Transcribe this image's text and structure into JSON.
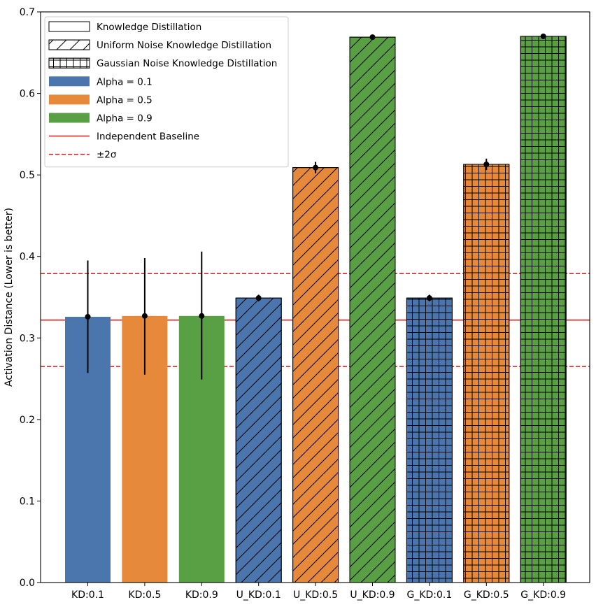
{
  "chart_data": {
    "type": "bar",
    "title": "",
    "xlabel": "",
    "ylabel": "Activation Distance (Lower is better)",
    "ylim": [
      0,
      0.7
    ],
    "yticks": [
      "0.0",
      "0.1",
      "0.2",
      "0.3",
      "0.4",
      "0.5",
      "0.6",
      "0.7"
    ],
    "ytick_values": [
      0,
      0.1,
      0.2,
      0.3,
      0.4,
      0.5,
      0.6,
      0.7
    ],
    "categories": [
      "KD:0.1",
      "KD:0.5",
      "KD:0.9",
      "U_KD:0.1",
      "U_KD:0.5",
      "U_KD:0.9",
      "G_KD:0.1",
      "G_KD:0.5",
      "G_KD:0.9"
    ],
    "values": [
      0.326,
      0.327,
      0.327,
      0.349,
      0.509,
      0.669,
      0.349,
      0.513,
      0.67
    ],
    "error_low": [
      0.257,
      0.255,
      0.249,
      0.345,
      0.502,
      0.668,
      0.345,
      0.506,
      0.669
    ],
    "error_high": [
      0.395,
      0.398,
      0.406,
      0.353,
      0.516,
      0.67,
      0.353,
      0.52,
      0.671
    ],
    "bar_alpha": [
      "0.1",
      "0.5",
      "0.9",
      "0.1",
      "0.5",
      "0.9",
      "0.1",
      "0.5",
      "0.9"
    ],
    "bar_pattern": [
      "none",
      "none",
      "none",
      "diagonal",
      "diagonal",
      "diagonal",
      "grid",
      "grid",
      "grid"
    ],
    "baseline": 0.322,
    "baseline_upper": 0.379,
    "baseline_lower": 0.265,
    "colors": {
      "alpha_0.1": "#4a76ad",
      "alpha_0.5": "#e6893a",
      "alpha_0.9": "#58a043",
      "baseline": "#d62728",
      "errorbar": "#000000"
    },
    "legend": [
      {
        "kind": "pattern",
        "pattern": "none",
        "label": "Knowledge Distillation"
      },
      {
        "kind": "pattern",
        "pattern": "diagonal",
        "label": "Uniform Noise Knowledge Distillation"
      },
      {
        "kind": "pattern",
        "pattern": "grid",
        "label": "Gaussian Noise Knowledge Distillation"
      },
      {
        "kind": "color",
        "color_key": "alpha_0.1",
        "label": "Alpha = 0.1"
      },
      {
        "kind": "color",
        "color_key": "alpha_0.5",
        "label": "Alpha = 0.5"
      },
      {
        "kind": "color",
        "color_key": "alpha_0.9",
        "label": "Alpha = 0.9"
      },
      {
        "kind": "line",
        "style": "solid",
        "label": "Independent Baseline"
      },
      {
        "kind": "line",
        "style": "dashed",
        "label": "±2σ"
      }
    ],
    "legend_position": "top-left"
  }
}
